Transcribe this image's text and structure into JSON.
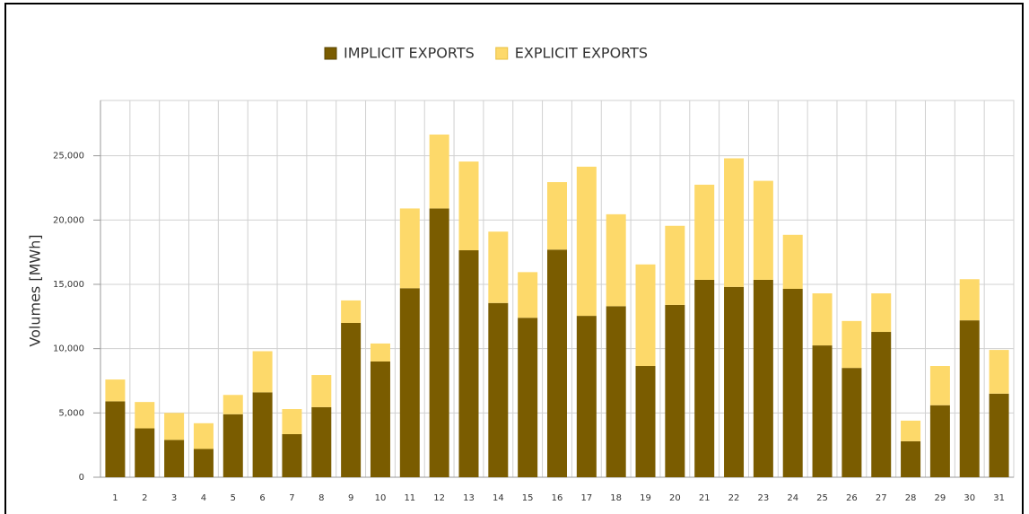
{
  "chart_data": {
    "type": "stacked_bar",
    "y_label": "Volumes [MWh]",
    "categories": [
      "1",
      "2",
      "3",
      "4",
      "5",
      "6",
      "7",
      "8",
      "9",
      "10",
      "11",
      "12",
      "13",
      "14",
      "15",
      "16",
      "17",
      "18",
      "19",
      "20",
      "21",
      "22",
      "23",
      "24",
      "25",
      "26",
      "27",
      "28",
      "29",
      "30",
      "31"
    ],
    "series": [
      {
        "name": "IMPLICIT EXPORTS",
        "color": "#7a5c00",
        "values": [
          5900,
          3800,
          2900,
          2200,
          4900,
          6600,
          3350,
          5450,
          12000,
          9000,
          14700,
          20900,
          17650,
          13550,
          12400,
          17700,
          12550,
          13300,
          8650,
          13400,
          15350,
          14800,
          15350,
          14650,
          10250,
          8500,
          11300,
          2800,
          5600,
          12200,
          6500
        ]
      },
      {
        "name": "EXPLICIT EXPORTS",
        "color": "#fdd96a",
        "values": [
          1700,
          2050,
          2100,
          2000,
          1500,
          3200,
          1950,
          2500,
          1750,
          1400,
          6200,
          5750,
          6900,
          5550,
          3550,
          5250,
          11600,
          7150,
          7900,
          6150,
          7400,
          10000,
          7700,
          4200,
          4050,
          3650,
          3000,
          1600,
          3050,
          3200,
          3400
        ]
      }
    ],
    "ylim": [
      0,
      29300
    ],
    "yticks": [
      0,
      {
        "value": 5000,
        "label": "5,000"
      },
      {
        "value": 10000,
        "label": "10,000"
      },
      {
        "value": 15000,
        "label": "15,000"
      },
      {
        "value": 20000,
        "label": "20,000"
      },
      {
        "value": 25000,
        "label": "25,000"
      }
    ],
    "grid": true
  }
}
